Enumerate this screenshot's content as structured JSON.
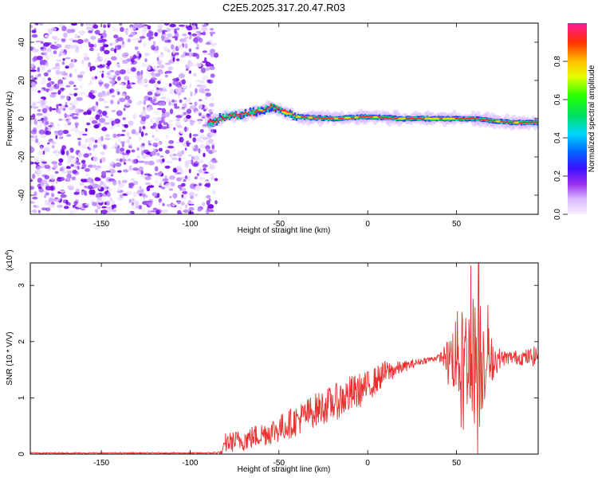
{
  "title": "C2E5.2025.317.20.47.R03",
  "colors": {
    "snr_line": "#e8312e",
    "noise": "#7a10f0",
    "band_low": "#1a2cff",
    "band_mid": "#00e08a",
    "band_high": "#ff2a1a",
    "band_peak": "#ffd400"
  },
  "chart_data": [
    {
      "type": "heatmap",
      "name": "spectrogram",
      "xlabel": "Height of straight line (km)",
      "ylabel": "Frequency (Hz)",
      "xlim": [
        -190,
        96
      ],
      "ylim": [
        -50,
        50
      ],
      "xticks": [
        -150,
        -100,
        -50,
        0,
        50
      ],
      "xtick_labels": [
        "-150",
        "-100",
        "-50",
        "0",
        "50"
      ],
      "yticks": [
        -40,
        -20,
        0,
        20,
        40
      ],
      "ytick_labels": [
        "-40",
        "-20",
        "0",
        "20",
        "40"
      ],
      "noise_region_x": [
        -190,
        -88
      ],
      "band": {
        "x_start": -90,
        "x_end": 96,
        "center_frequency_hz": 0,
        "trend": [
          [
            -90,
            -2
          ],
          [
            -80,
            1
          ],
          [
            -65,
            3
          ],
          [
            -55,
            6
          ],
          [
            -40,
            1
          ],
          [
            -20,
            0
          ],
          [
            0,
            1
          ],
          [
            20,
            0
          ],
          [
            40,
            0
          ],
          [
            60,
            0
          ],
          [
            80,
            -2
          ],
          [
            96,
            -2
          ]
        ]
      },
      "colorbar": {
        "label": "Normalized spectral amplitude",
        "range": [
          0,
          1
        ],
        "ticks": [
          0.0,
          0.2,
          0.4,
          0.6,
          0.8
        ],
        "tick_labels": [
          "0.0",
          "0.2",
          "0.4",
          "0.6",
          "0.8"
        ],
        "stops": [
          {
            "v": 0.0,
            "color": "#f6efff"
          },
          {
            "v": 0.08,
            "color": "#d9b8ff"
          },
          {
            "v": 0.16,
            "color": "#9a2cf0"
          },
          {
            "v": 0.24,
            "color": "#3a10ff"
          },
          {
            "v": 0.33,
            "color": "#0068ff"
          },
          {
            "v": 0.42,
            "color": "#00d8ff"
          },
          {
            "v": 0.52,
            "color": "#00e060"
          },
          {
            "v": 0.62,
            "color": "#28ff00"
          },
          {
            "v": 0.72,
            "color": "#e6ff00"
          },
          {
            "v": 0.8,
            "color": "#ffc000"
          },
          {
            "v": 0.9,
            "color": "#ff3000"
          },
          {
            "v": 1.0,
            "color": "#ff1aa0"
          }
        ]
      }
    },
    {
      "type": "line",
      "name": "snr",
      "xlabel": "Height of straight line (km)",
      "ylabel": "SNR (10 * V/V)",
      "y_multiplier_label": "(x10",
      "y_multiplier_exponent": "4",
      "xlim": [
        -190,
        96
      ],
      "ylim": [
        0,
        3.4
      ],
      "xticks": [
        -150,
        -100,
        -50,
        0,
        50
      ],
      "xtick_labels": [
        "-150",
        "-100",
        "-50",
        "0",
        "50"
      ],
      "yticks": [
        0,
        1,
        2,
        3
      ],
      "ytick_labels": [
        "0",
        "1",
        "2",
        "3"
      ],
      "series": [
        {
          "name": "SNR",
          "envelope_x": [
            -190,
            -90,
            -82,
            -80,
            -70,
            -60,
            -50,
            -40,
            -30,
            -20,
            -10,
            0,
            10,
            20,
            30,
            40,
            45,
            50,
            55,
            60,
            62,
            65,
            70,
            75,
            80,
            90,
            96
          ],
          "envelope_mean": [
            0.02,
            0.02,
            0.03,
            0.2,
            0.25,
            0.35,
            0.45,
            0.6,
            0.78,
            0.9,
            1.05,
            1.2,
            1.45,
            1.55,
            1.65,
            1.72,
            1.73,
            1.75,
            1.75,
            1.72,
            1.72,
            1.72,
            1.68,
            1.7,
            1.72,
            1.72,
            1.75
          ],
          "envelope_amp": [
            0.01,
            0.01,
            0.02,
            0.18,
            0.2,
            0.22,
            0.25,
            0.28,
            0.3,
            0.32,
            0.35,
            0.28,
            0.22,
            0.1,
            0.06,
            0.05,
            0.3,
            0.8,
            0.9,
            1.2,
            1.6,
            0.9,
            0.4,
            0.15,
            0.12,
            0.15,
            0.2
          ]
        }
      ]
    }
  ]
}
